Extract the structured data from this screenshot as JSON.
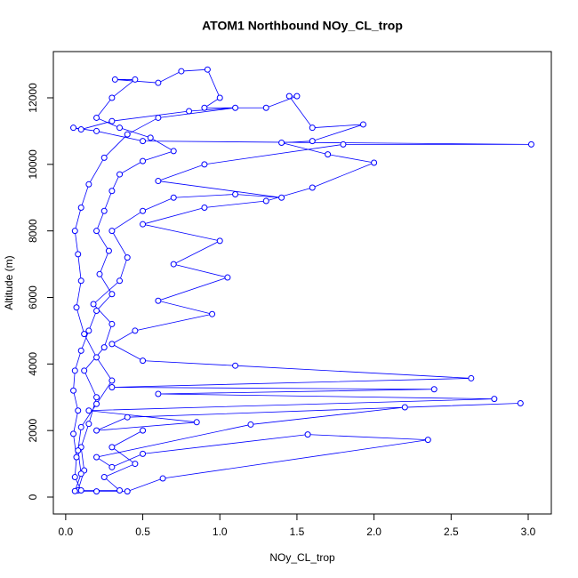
{
  "chart_data": {
    "type": "line",
    "markers": true,
    "title": "ATOM1 Northbound NOy_CL_trop",
    "x_label": "NOy_CL_trop",
    "y_label": "Altitude (m)",
    "color": "#0000ff",
    "x": [
      0.08,
      0.12,
      0.1,
      0.15,
      0.2,
      0.12,
      0.25,
      0.3,
      0.18,
      0.35,
      0.4,
      0.3,
      0.5,
      0.7,
      1.1,
      1.4,
      0.6,
      0.9,
      1.8,
      3.02,
      0.5,
      0.2,
      0.05,
      0.1,
      0.3,
      0.8,
      1.1,
      0.6,
      0.4,
      0.25,
      0.15,
      0.1,
      0.06,
      0.08,
      0.1,
      0.07,
      0.12,
      0.2,
      0.3,
      0.2,
      0.1,
      0.08,
      0.1,
      0.06,
      0.2,
      0.4,
      0.63,
      2.35,
      1.57,
      0.5,
      0.3,
      0.2,
      1.2,
      2.2,
      2.95,
      0.4,
      0.2,
      0.85,
      0.15,
      2.78,
      0.6,
      2.39,
      0.3,
      2.63,
      1.1,
      0.5,
      0.3,
      0.45,
      0.95,
      0.6,
      1.05,
      0.7,
      1.0,
      0.5,
      0.9,
      1.3,
      1.6,
      2.0,
      1.7,
      1.4,
      1.6,
      1.93,
      1.6,
      1.45,
      1.5,
      1.3,
      0.9,
      1.0,
      0.92,
      0.75,
      0.6,
      0.32,
      0.45,
      0.3,
      0.2,
      0.35,
      0.55,
      0.7,
      0.5,
      0.35,
      0.3,
      0.25,
      0.2,
      0.28,
      0.22,
      0.3,
      0.2,
      0.15,
      0.1,
      0.06,
      0.05,
      0.08,
      0.05,
      0.07,
      0.06,
      0.1,
      0.35,
      0.25,
      0.45,
      0.3,
      0.5
    ],
    "values": [
      200,
      800,
      1500,
      2200,
      3000,
      3800,
      4500,
      5200,
      5800,
      6500,
      7200,
      8000,
      8600,
      9000,
      9100,
      9000,
      9500,
      10000,
      10600,
      10600,
      10700,
      11000,
      11100,
      11050,
      11300,
      11600,
      11700,
      11400,
      10900,
      10200,
      9400,
      8700,
      8000,
      7300,
      6500,
      5700,
      4900,
      4200,
      3500,
      2800,
      2100,
      1400,
      700,
      180,
      170,
      170,
      560,
      1720,
      1880,
      1300,
      900,
      1200,
      2180,
      2700,
      2820,
      2400,
      2000,
      2250,
      2600,
      2950,
      3100,
      3240,
      3300,
      3570,
      3950,
      4100,
      4600,
      5000,
      5500,
      5900,
      6600,
      7000,
      7700,
      8200,
      8700,
      8900,
      9300,
      10050,
      10300,
      10650,
      10700,
      11200,
      11100,
      12050,
      12050,
      11700,
      11700,
      12000,
      12850,
      12800,
      12450,
      12550,
      12550,
      12000,
      11400,
      11100,
      10800,
      10400,
      10100,
      9700,
      9200,
      8600,
      8000,
      7400,
      6700,
      6100,
      5600,
      5000,
      4400,
      3800,
      3200,
      2600,
      1900,
      1200,
      600,
      200,
      200,
      600,
      1000,
      1500,
      2000
    ],
    "xlim": [
      -0.08,
      3.15
    ],
    "ylim": [
      -508,
      13390
    ],
    "xticks": [
      {
        "value": 0,
        "label": "0.0"
      },
      0.5,
      {
        "value": 1,
        "label": "1.0"
      },
      1.5,
      {
        "value": 2,
        "label": "2.0"
      },
      2.5,
      {
        "value": 3,
        "label": "3.0"
      }
    ],
    "yticks": [
      0,
      2000,
      4000,
      6000,
      8000,
      10000,
      12000
    ]
  }
}
